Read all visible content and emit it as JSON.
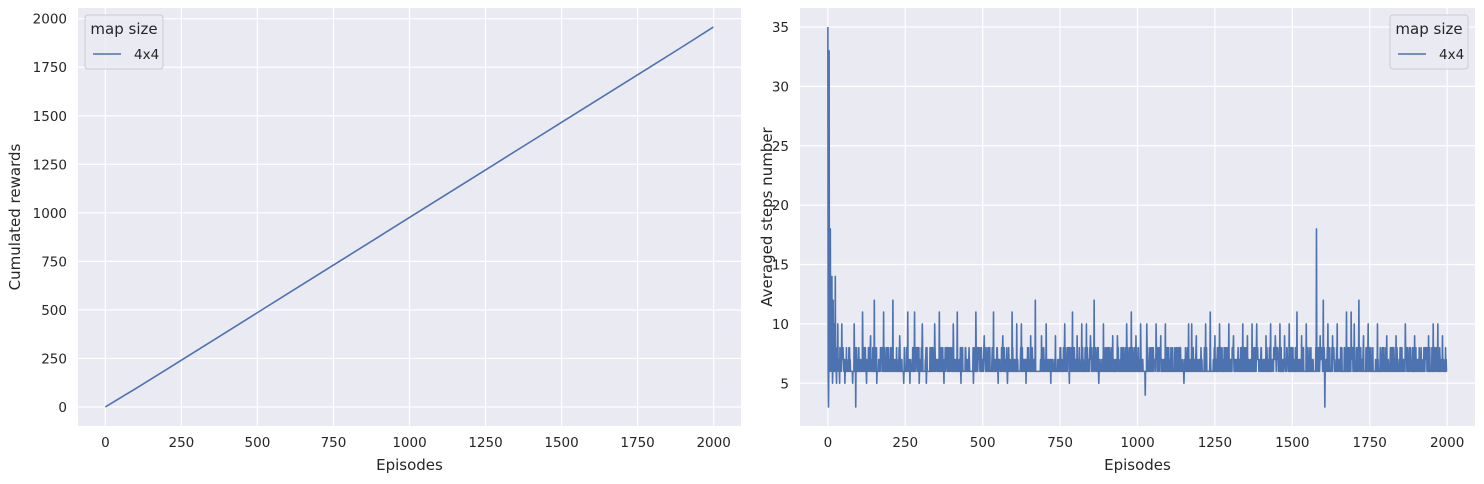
{
  "chart_data": [
    {
      "type": "line",
      "xlabel": "Episodes",
      "ylabel": "Cumulated rewards",
      "xlim": [
        -90,
        2090
      ],
      "ylim": [
        -98,
        2055
      ],
      "xticks": [
        0,
        250,
        500,
        750,
        1000,
        1250,
        1500,
        1750,
        2000
      ],
      "yticks": [
        0,
        250,
        500,
        750,
        1000,
        1250,
        1500,
        1750,
        2000
      ],
      "grid": true,
      "legend": {
        "title": "map size",
        "placement": "upper left"
      },
      "series": [
        {
          "name": "4x4",
          "color": "#4c72b0",
          "x": [
            0,
            100,
            200,
            300,
            400,
            500,
            600,
            700,
            800,
            900,
            1000,
            1100,
            1200,
            1300,
            1400,
            1500,
            1600,
            1700,
            1800,
            1900,
            1999
          ],
          "y": [
            0,
            95,
            192,
            290,
            388,
            486,
            584,
            682,
            780,
            878,
            976,
            1074,
            1172,
            1270,
            1368,
            1466,
            1564,
            1662,
            1760,
            1858,
            1957
          ]
        }
      ]
    },
    {
      "type": "line",
      "xlabel": "Episodes",
      "ylabel": "Averaged steps number",
      "xlim": [
        -90,
        2090
      ],
      "ylim": [
        1.4,
        36.6
      ],
      "xticks": [
        0,
        250,
        500,
        750,
        1000,
        1250,
        1500,
        1750,
        2000
      ],
      "yticks": [
        5,
        10,
        15,
        20,
        25,
        30,
        35
      ],
      "grid": true,
      "legend": {
        "title": "map size",
        "placement": "upper right"
      },
      "series": [
        {
          "name": "4x4",
          "color": "#4c72b0",
          "x_range": [
            0,
            1999
          ],
          "baseline_steps": [
            6,
            7,
            8
          ],
          "spikes": [
            {
              "x": 0,
              "y": 35
            },
            {
              "x": 2,
              "y": 3
            },
            {
              "x": 4,
              "y": 33
            },
            {
              "x": 6,
              "y": 10
            },
            {
              "x": 8,
              "y": 18
            },
            {
              "x": 11,
              "y": 8
            },
            {
              "x": 13,
              "y": 14
            },
            {
              "x": 15,
              "y": 5
            },
            {
              "x": 17,
              "y": 12
            },
            {
              "x": 20,
              "y": 10
            },
            {
              "x": 24,
              "y": 14
            },
            {
              "x": 28,
              "y": 5
            },
            {
              "x": 32,
              "y": 10
            },
            {
              "x": 38,
              "y": 5
            },
            {
              "x": 45,
              "y": 10
            },
            {
              "x": 55,
              "y": 5
            },
            {
              "x": 62,
              "y": 7
            },
            {
              "x": 70,
              "y": 8
            },
            {
              "x": 80,
              "y": 5
            },
            {
              "x": 85,
              "y": 10
            },
            {
              "x": 90,
              "y": 3
            },
            {
              "x": 100,
              "y": 8
            },
            {
              "x": 112,
              "y": 11
            },
            {
              "x": 125,
              "y": 5
            },
            {
              "x": 138,
              "y": 9
            },
            {
              "x": 150,
              "y": 12
            },
            {
              "x": 158,
              "y": 5
            },
            {
              "x": 170,
              "y": 8
            },
            {
              "x": 180,
              "y": 11
            },
            {
              "x": 195,
              "y": 8
            },
            {
              "x": 210,
              "y": 12
            },
            {
              "x": 222,
              "y": 8
            },
            {
              "x": 232,
              "y": 9
            },
            {
              "x": 245,
              "y": 5
            },
            {
              "x": 258,
              "y": 11
            },
            {
              "x": 265,
              "y": 5
            },
            {
              "x": 280,
              "y": 11
            },
            {
              "x": 295,
              "y": 5
            },
            {
              "x": 305,
              "y": 10
            },
            {
              "x": 318,
              "y": 5
            },
            {
              "x": 330,
              "y": 8
            },
            {
              "x": 345,
              "y": 10
            },
            {
              "x": 360,
              "y": 11
            },
            {
              "x": 375,
              "y": 5
            },
            {
              "x": 390,
              "y": 8
            },
            {
              "x": 405,
              "y": 10
            },
            {
              "x": 418,
              "y": 11
            },
            {
              "x": 430,
              "y": 5
            },
            {
              "x": 445,
              "y": 8
            },
            {
              "x": 470,
              "y": 5
            },
            {
              "x": 478,
              "y": 11
            },
            {
              "x": 490,
              "y": 8
            },
            {
              "x": 505,
              "y": 9
            },
            {
              "x": 520,
              "y": 8
            },
            {
              "x": 535,
              "y": 11
            },
            {
              "x": 550,
              "y": 5
            },
            {
              "x": 565,
              "y": 9
            },
            {
              "x": 580,
              "y": 5
            },
            {
              "x": 595,
              "y": 11
            },
            {
              "x": 610,
              "y": 10
            },
            {
              "x": 625,
              "y": 10
            },
            {
              "x": 640,
              "y": 5
            },
            {
              "x": 655,
              "y": 9
            },
            {
              "x": 670,
              "y": 12
            },
            {
              "x": 690,
              "y": 9
            },
            {
              "x": 705,
              "y": 10
            },
            {
              "x": 720,
              "y": 5
            },
            {
              "x": 735,
              "y": 9
            },
            {
              "x": 750,
              "y": 8
            },
            {
              "x": 765,
              "y": 10
            },
            {
              "x": 780,
              "y": 5
            },
            {
              "x": 790,
              "y": 11
            },
            {
              "x": 805,
              "y": 9
            },
            {
              "x": 820,
              "y": 10
            },
            {
              "x": 835,
              "y": 10
            },
            {
              "x": 848,
              "y": 9
            },
            {
              "x": 860,
              "y": 12
            },
            {
              "x": 875,
              "y": 5
            },
            {
              "x": 890,
              "y": 10
            },
            {
              "x": 905,
              "y": 8
            },
            {
              "x": 920,
              "y": 9
            },
            {
              "x": 935,
              "y": 9
            },
            {
              "x": 950,
              "y": 8
            },
            {
              "x": 965,
              "y": 10
            },
            {
              "x": 980,
              "y": 11
            },
            {
              "x": 995,
              "y": 9
            },
            {
              "x": 1010,
              "y": 10
            },
            {
              "x": 1025,
              "y": 4
            },
            {
              "x": 1030,
              "y": 10
            },
            {
              "x": 1045,
              "y": 8
            },
            {
              "x": 1060,
              "y": 10
            },
            {
              "x": 1075,
              "y": 9
            },
            {
              "x": 1090,
              "y": 10
            },
            {
              "x": 1105,
              "y": 7
            },
            {
              "x": 1120,
              "y": 8
            },
            {
              "x": 1135,
              "y": 8
            },
            {
              "x": 1150,
              "y": 5
            },
            {
              "x": 1165,
              "y": 10
            },
            {
              "x": 1175,
              "y": 10
            },
            {
              "x": 1190,
              "y": 9
            },
            {
              "x": 1205,
              "y": 8
            },
            {
              "x": 1220,
              "y": 10
            },
            {
              "x": 1235,
              "y": 11
            },
            {
              "x": 1250,
              "y": 9
            },
            {
              "x": 1265,
              "y": 10
            },
            {
              "x": 1280,
              "y": 8
            },
            {
              "x": 1295,
              "y": 10
            },
            {
              "x": 1310,
              "y": 9
            },
            {
              "x": 1325,
              "y": 8
            },
            {
              "x": 1340,
              "y": 10
            },
            {
              "x": 1355,
              "y": 9
            },
            {
              "x": 1370,
              "y": 10
            },
            {
              "x": 1385,
              "y": 10
            },
            {
              "x": 1400,
              "y": 8
            },
            {
              "x": 1415,
              "y": 9
            },
            {
              "x": 1430,
              "y": 10
            },
            {
              "x": 1445,
              "y": 9
            },
            {
              "x": 1460,
              "y": 10
            },
            {
              "x": 1475,
              "y": 9
            },
            {
              "x": 1490,
              "y": 10
            },
            {
              "x": 1500,
              "y": 8
            },
            {
              "x": 1515,
              "y": 11
            },
            {
              "x": 1530,
              "y": 9
            },
            {
              "x": 1545,
              "y": 10
            },
            {
              "x": 1560,
              "y": 8
            },
            {
              "x": 1578,
              "y": 18
            },
            {
              "x": 1590,
              "y": 9
            },
            {
              "x": 1600,
              "y": 12
            },
            {
              "x": 1605,
              "y": 3
            },
            {
              "x": 1615,
              "y": 10
            },
            {
              "x": 1630,
              "y": 9
            },
            {
              "x": 1645,
              "y": 10
            },
            {
              "x": 1660,
              "y": 8
            },
            {
              "x": 1675,
              "y": 11
            },
            {
              "x": 1690,
              "y": 11
            },
            {
              "x": 1700,
              "y": 10
            },
            {
              "x": 1715,
              "y": 12
            },
            {
              "x": 1730,
              "y": 9
            },
            {
              "x": 1745,
              "y": 10
            },
            {
              "x": 1760,
              "y": 8
            },
            {
              "x": 1775,
              "y": 10
            },
            {
              "x": 1790,
              "y": 8
            },
            {
              "x": 1805,
              "y": 9
            },
            {
              "x": 1820,
              "y": 8
            },
            {
              "x": 1835,
              "y": 9
            },
            {
              "x": 1850,
              "y": 8
            },
            {
              "x": 1865,
              "y": 10
            },
            {
              "x": 1880,
              "y": 8
            },
            {
              "x": 1895,
              "y": 9
            },
            {
              "x": 1910,
              "y": 8
            },
            {
              "x": 1925,
              "y": 8
            },
            {
              "x": 1940,
              "y": 9
            },
            {
              "x": 1955,
              "y": 10
            },
            {
              "x": 1970,
              "y": 10
            },
            {
              "x": 1985,
              "y": 9
            },
            {
              "x": 1999,
              "y": 6
            }
          ]
        }
      ]
    }
  ]
}
